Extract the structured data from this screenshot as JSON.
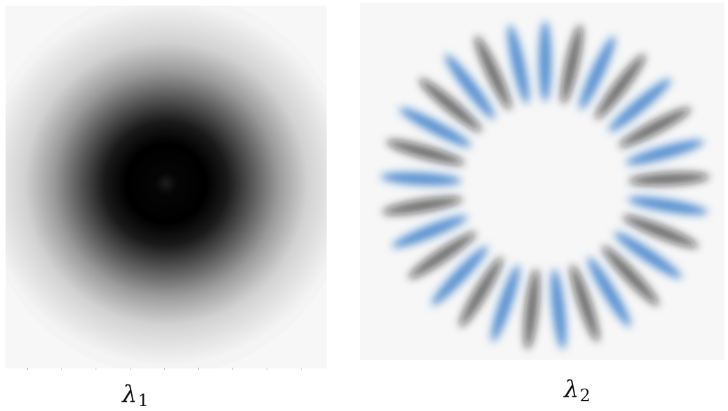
{
  "figure": {
    "panels": [
      {
        "id": "lambda-1",
        "symbol": "λ",
        "subscript": "1",
        "pattern": "gaussian-blob",
        "colors": {
          "ink": "#000000",
          "background": "#f7f7f7"
        }
      },
      {
        "id": "lambda-2",
        "symbol": "λ",
        "subscript": "2",
        "pattern": "radial-ring-of-lobes",
        "lobe_count": 29,
        "colors": {
          "positive": "#1f6fc4",
          "negative": "#111111",
          "background": "#f7f7f7"
        }
      }
    ]
  }
}
